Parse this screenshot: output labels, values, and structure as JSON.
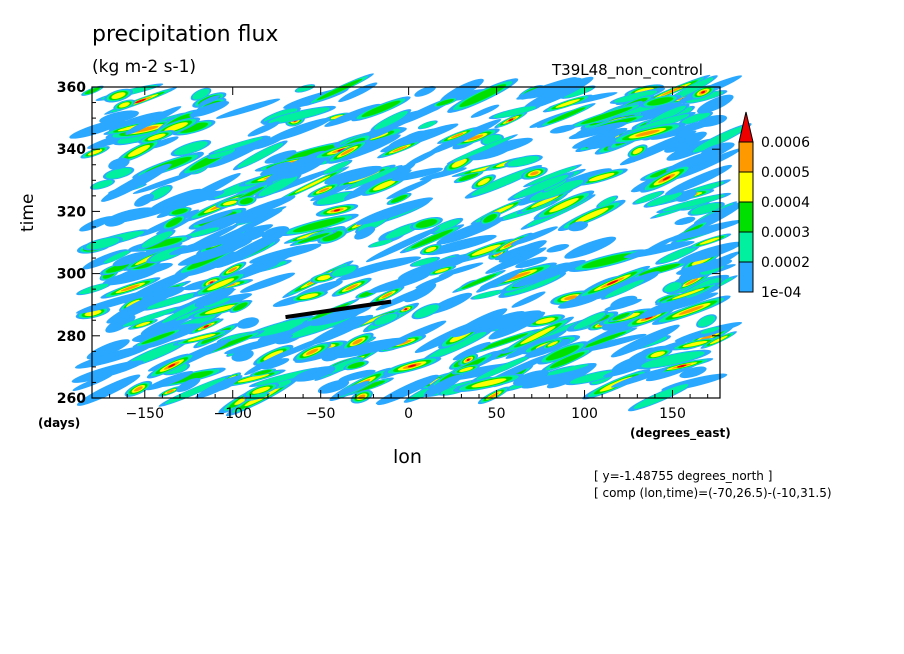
{
  "title": "precipitation flux",
  "units": "(kg m-2 s-1)",
  "run_name": "T39L48_non_control",
  "footnotes": {
    "line1": "[ y=-1.48755 degrees_north ]",
    "line2": "[ comp (lon,time)=(-70,26.5)-(-10,31.5)"
  },
  "chart_data": {
    "type": "heatmap",
    "xlabel": "lon",
    "x_units": "(degrees_east)",
    "ylabel": "time",
    "y_units": "(days)",
    "xlim": [
      -180,
      177
    ],
    "ylim": [
      260,
      360
    ],
    "x_ticks": [
      -150,
      -100,
      -50,
      0,
      50,
      100,
      150
    ],
    "y_ticks": [
      260,
      280,
      300,
      320,
      340,
      360
    ],
    "x_tick_labels": [
      "−150",
      "−100",
      "−50",
      "0",
      "50",
      "100",
      "150"
    ],
    "y_tick_labels": [
      "260",
      "280",
      "300",
      "320",
      "340",
      "360"
    ],
    "colorbar": {
      "levels": [
        0.0001,
        0.0002,
        0.0003,
        0.0004,
        0.0005,
        0.0006
      ],
      "labels": [
        "1e-04",
        "0.0002",
        "0.0003",
        "0.0004",
        "0.0005",
        "0.0006"
      ],
      "colors": [
        "#2aa8ff",
        "#00f0a0",
        "#00e000",
        "#ffff00",
        "#ff9900",
        "#ee0000"
      ],
      "extend": "max"
    },
    "annotation_line": {
      "from": [
        -70,
        286
      ],
      "to": [
        -10,
        291
      ]
    },
    "background_color": "#ffffff"
  }
}
